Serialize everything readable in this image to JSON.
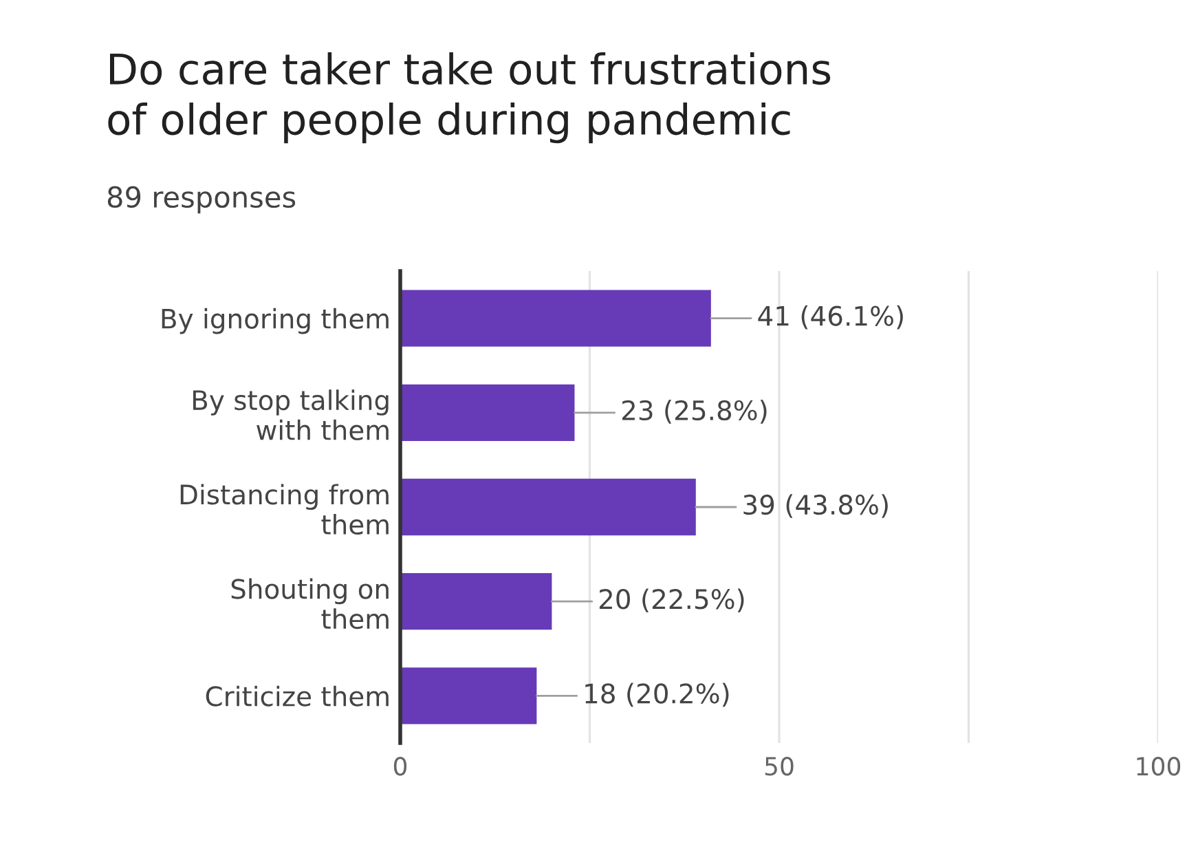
{
  "chart_data": {
    "type": "bar",
    "orientation": "horizontal",
    "title": "Do care taker take out frustrations\nof older people during pandemic",
    "subtitle": "89 responses",
    "categories": [
      "By ignoring them",
      "By stop talking\nwith them",
      "Distancing from\nthem",
      "Shouting on\nthem",
      "Criticize them"
    ],
    "values": [
      41,
      23,
      39,
      20,
      18
    ],
    "value_labels": [
      "41 (46.1%)",
      "23 (25.8%)",
      "39 (43.8%)",
      "20 (22.5%)",
      "18 (20.2%)"
    ],
    "color": "#673ab7",
    "xlim": [
      0,
      100
    ],
    "xticks": [
      0,
      {
        "value": 25,
        "label": null
      },
      50,
      {
        "value": 75,
        "label": null
      },
      100
    ],
    "grid": "x"
  }
}
